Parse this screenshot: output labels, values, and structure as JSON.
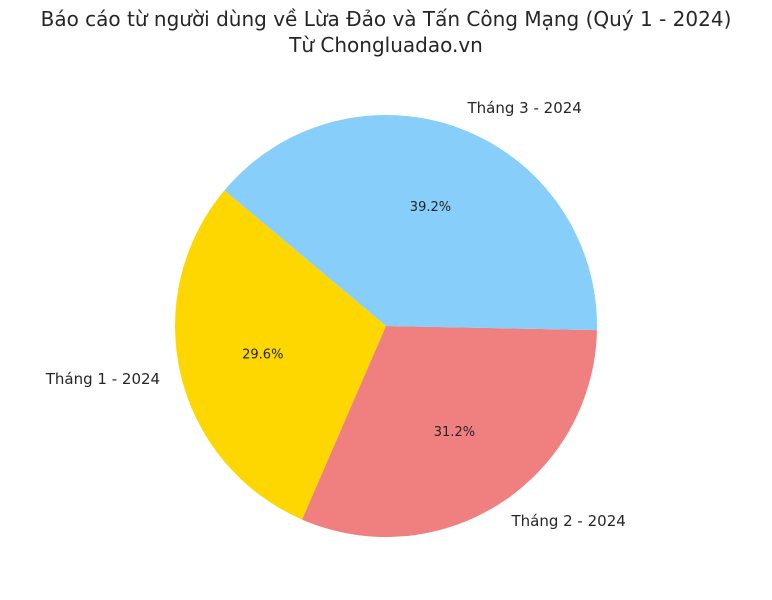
{
  "chart_data": {
    "type": "pie",
    "title": "Báo cáo từ người dùng về Lừa Đảo và Tấn Công Mạng (Quý 1 - 2024)\nTừ Chongluadao.vn",
    "categories": [
      "Tháng 1 - 2024",
      "Tháng 2 - 2024",
      "Tháng 3 - 2024"
    ],
    "values": [
      29.6,
      31.2,
      39.2
    ],
    "value_labels": [
      "29.6%",
      "31.2%",
      "39.2%"
    ],
    "colors": [
      "#ffd700",
      "#f08080",
      "#87cefa"
    ]
  }
}
